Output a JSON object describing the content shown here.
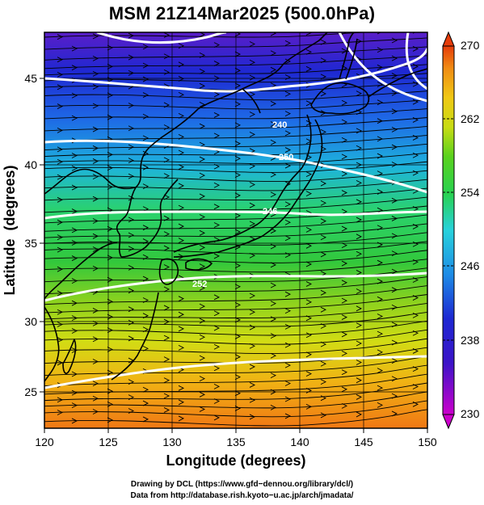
{
  "title": "MSM 21Z14Mar2025 (500.0hPa)",
  "map": {
    "x_axis": {
      "label": "Longitude (degrees)",
      "ticks": [
        "120",
        "125",
        "130",
        "135",
        "140",
        "145",
        "150"
      ],
      "range": [
        120,
        150
      ]
    },
    "y_axis": {
      "label": "Latitude  (degrees)",
      "ticks": [
        "25",
        "30",
        "35",
        "40",
        "45"
      ],
      "range": [
        22.4,
        47.6
      ]
    },
    "field": "temperature (K) shaded, wind streamlines, isotherms in white",
    "contour_labels": [
      "250",
      "240",
      "246",
      "252"
    ]
  },
  "colorbar": {
    "tick_labels": [
      "270",
      "262",
      "254",
      "246",
      "238",
      "230"
    ],
    "range": [
      230,
      270
    ],
    "colors": [
      "#cc00cc",
      "#1e1ecc",
      "#2a7ae6",
      "#2ad0e6",
      "#22c84a",
      "#9ad81e",
      "#f0e61e",
      "#f5a014",
      "#f07814",
      "#e63c0a"
    ]
  },
  "credits": {
    "line1": "Drawing by DCL (https://www.gfd−dennou.org/library/dcl/)",
    "line2": "Data from http://database.rish.kyoto−u.ac.jp/arch/jmadata/"
  }
}
